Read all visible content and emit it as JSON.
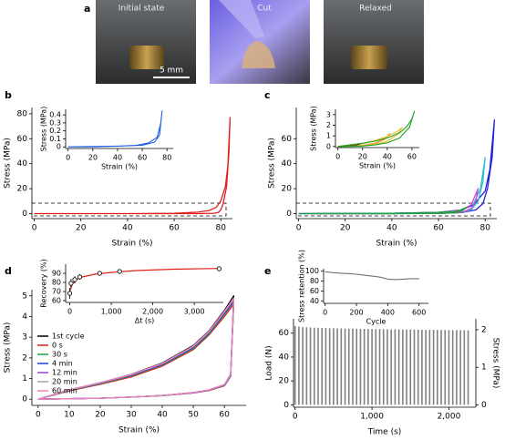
{
  "photos": {
    "panel": "a",
    "labels": [
      "Initial state",
      "Cut",
      "Relaxed"
    ],
    "scale_bar": "5 mm"
  },
  "chart_data": [
    {
      "panel": "b",
      "type": "line",
      "xlabel": "Strain (%)",
      "ylabel": "Stress (MPa)",
      "x": [
        0,
        20,
        40,
        60,
        70,
        75,
        78,
        80,
        82,
        83,
        84,
        83.5,
        82.5,
        81,
        80,
        79,
        77,
        70,
        60,
        40,
        20,
        0
      ],
      "values": [
        0,
        0,
        0,
        0.3,
        1.2,
        2.5,
        5,
        10,
        22,
        38,
        77,
        50,
        22,
        8,
        3,
        1,
        0.3,
        0,
        0,
        0,
        0,
        0
      ],
      "color": "#e0201c",
      "xlim": [
        -1,
        85
      ],
      "ylim": [
        -4,
        85
      ],
      "xticks": [
        0,
        20,
        40,
        60,
        80
      ],
      "yticks": [
        0,
        20,
        40,
        60,
        80
      ]
    },
    {
      "type": "line",
      "xlabel": "Strain (%)",
      "ylabel": "Stress (MPa)",
      "x": [
        0,
        20,
        40,
        60,
        70,
        74,
        76,
        75,
        72,
        65,
        55,
        40,
        20,
        0
      ],
      "values": [
        0,
        0.005,
        0.01,
        0.02,
        0.06,
        0.15,
        0.45,
        0.3,
        0.12,
        0.05,
        0.02,
        0.01,
        0,
        0
      ],
      "color": "#1f5fe0",
      "xlim": [
        -2,
        85
      ],
      "ylim": [
        -0.02,
        0.47
      ],
      "xticks": [
        0,
        20,
        40,
        60,
        80
      ],
      "yticks": [
        0,
        0.1,
        0.2,
        0.3,
        0.4
      ]
    },
    {
      "panel": "c",
      "type": "line",
      "xlabel": "Strain (%)",
      "ylabel": "Stress (MPa)",
      "series": [
        {
          "color": "#2020e0",
          "x": [
            0,
            40,
            60,
            70,
            75,
            80,
            82,
            84,
            83,
            81,
            79,
            76,
            70,
            60,
            40,
            0
          ],
          "values": [
            0,
            0.3,
            1,
            3,
            7,
            18,
            35,
            75,
            45,
            20,
            8,
            3,
            0.8,
            0.2,
            0,
            0
          ]
        },
        {
          "color": "#30c0d0",
          "x": [
            0,
            40,
            60,
            70,
            75,
            78,
            80,
            79,
            77,
            74,
            70,
            60,
            40,
            0
          ],
          "values": [
            0,
            0.3,
            1,
            3,
            8,
            20,
            45,
            25,
            10,
            3,
            0.8,
            0.2,
            0,
            0
          ]
        },
        {
          "color": "#d040d0",
          "x": [
            0,
            40,
            60,
            70,
            74,
            77,
            76,
            74,
            70,
            60,
            40,
            0
          ],
          "values": [
            0,
            0.3,
            1,
            3,
            7,
            20,
            10,
            4,
            1,
            0.3,
            0,
            0
          ]
        },
        {
          "color": "#20a040",
          "x": [
            0,
            40,
            60,
            68,
            72,
            70,
            66,
            60,
            40,
            0
          ],
          "values": [
            0,
            0.3,
            1,
            2,
            5,
            2,
            0.6,
            0.2,
            0,
            0
          ]
        }
      ],
      "xlim": [
        -1,
        85
      ],
      "ylim": [
        -4,
        85
      ],
      "xticks": [
        0,
        20,
        40,
        60,
        80
      ],
      "yticks": [
        0,
        20,
        40,
        60
      ]
    },
    {
      "type": "line",
      "xlabel": "Strain (%)",
      "ylabel": "Stress (MPa)",
      "series": [
        {
          "color": "#000000",
          "x": [
            0,
            10,
            20,
            15,
            10,
            0
          ],
          "values": [
            0,
            0.12,
            0.3,
            0.15,
            0.05,
            0
          ]
        },
        {
          "color": "#f08020",
          "x": [
            0,
            20,
            30,
            40,
            42,
            38,
            30,
            20,
            10,
            0
          ],
          "values": [
            0,
            0.3,
            0.55,
            0.95,
            1.2,
            0.7,
            0.3,
            0.12,
            0.03,
            0
          ]
        },
        {
          "color": "#e8c020",
          "x": [
            0,
            20,
            30,
            40,
            48,
            52,
            48,
            40,
            30,
            20,
            10,
            0
          ],
          "values": [
            0,
            0.3,
            0.55,
            0.95,
            1.4,
            1.8,
            1.1,
            0.5,
            0.25,
            0.1,
            0.02,
            0
          ]
        },
        {
          "color": "#20a020",
          "x": [
            0,
            20,
            30,
            40,
            50,
            56,
            60,
            62,
            58,
            50,
            40,
            30,
            20,
            10,
            0
          ],
          "values": [
            0,
            0.3,
            0.5,
            0.8,
            1.3,
            1.9,
            2.6,
            3.3,
            1.8,
            0.8,
            0.35,
            0.15,
            0.05,
            0.01,
            0
          ]
        }
      ],
      "xlim": [
        -2,
        66
      ],
      "ylim": [
        -0.1,
        3.5
      ],
      "xticks": [
        0,
        20,
        40,
        60
      ],
      "yticks": [
        0,
        1,
        2,
        3
      ]
    },
    {
      "panel": "d",
      "type": "line",
      "xlabel": "Strain (%)",
      "ylabel": "Stress (MPa)",
      "legend": "lower left",
      "x": [
        0,
        10,
        20,
        30,
        40,
        50,
        55,
        60,
        63,
        62,
        60,
        55,
        50,
        40,
        30,
        20,
        10,
        0
      ],
      "series": [
        {
          "name": "1st cycle",
          "color": "#000000",
          "values": [
            0,
            0.45,
            0.8,
            1.2,
            1.75,
            2.6,
            3.3,
            4.3,
            5.0,
            1.2,
            0.7,
            0.45,
            0.32,
            0.18,
            0.1,
            0.05,
            0.02,
            0
          ]
        },
        {
          "name": "0 s",
          "color": "#e0201c",
          "values": [
            0,
            0.4,
            0.72,
            1.08,
            1.6,
            2.4,
            3.1,
            4.0,
            4.6,
            1.1,
            0.65,
            0.42,
            0.3,
            0.17,
            0.1,
            0.05,
            0.02,
            0
          ]
        },
        {
          "name": "30 s",
          "color": "#20a040",
          "values": [
            0,
            0.42,
            0.75,
            1.12,
            1.65,
            2.45,
            3.15,
            4.1,
            4.7,
            1.1,
            0.66,
            0.43,
            0.31,
            0.17,
            0.1,
            0.05,
            0.02,
            0
          ]
        },
        {
          "name": "4 min",
          "color": "#2040e0",
          "values": [
            0,
            0.43,
            0.77,
            1.15,
            1.68,
            2.5,
            3.2,
            4.15,
            4.75,
            1.15,
            0.67,
            0.44,
            0.31,
            0.18,
            0.1,
            0.05,
            0.02,
            0
          ]
        },
        {
          "name": "12 min",
          "color": "#9040d0",
          "values": [
            0,
            0.44,
            0.78,
            1.17,
            1.7,
            2.53,
            3.23,
            4.2,
            4.8,
            1.15,
            0.68,
            0.44,
            0.31,
            0.18,
            0.1,
            0.05,
            0.02,
            0
          ]
        },
        {
          "name": "20 min",
          "color": "#a0a0a0",
          "values": [
            0,
            0.44,
            0.79,
            1.18,
            1.72,
            2.55,
            3.25,
            4.22,
            4.85,
            1.18,
            0.69,
            0.45,
            0.32,
            0.18,
            0.1,
            0.05,
            0.02,
            0
          ]
        },
        {
          "name": "60 min",
          "color": "#f080c0",
          "values": [
            0,
            0.45,
            0.8,
            1.19,
            1.73,
            2.57,
            3.27,
            4.25,
            4.9,
            1.18,
            0.7,
            0.45,
            0.32,
            0.18,
            0.1,
            0.05,
            0.02,
            0
          ]
        }
      ],
      "xlim": [
        -2,
        67
      ],
      "ylim": [
        -0.3,
        5.3
      ],
      "xticks": [
        0,
        10,
        20,
        30,
        40,
        50,
        60
      ],
      "yticks": [
        0,
        1,
        2,
        3,
        4,
        5
      ]
    },
    {
      "type": "scatter",
      "xlabel": "Δt (s)",
      "ylabel": "Recovery (%)",
      "x": [
        0,
        30,
        120,
        240,
        720,
        1200,
        3600
      ],
      "values": [
        68,
        79,
        83,
        86,
        90,
        92,
        95
      ],
      "errors": [
        6,
        5,
        4,
        3,
        2,
        2,
        2
      ],
      "color": "#000000",
      "fit": {
        "x": [
          0,
          60,
          150,
          300,
          600,
          1000,
          1600,
          2500,
          3600
        ],
        "values": [
          70,
          78,
          83,
          86,
          89,
          91,
          93,
          94.5,
          95.3
        ],
        "color": "#e0201c"
      },
      "xlim": [
        -100,
        3700
      ],
      "ylim": [
        58,
        100
      ],
      "xticks": [
        0,
        {
          "value": 1000,
          "label": "1,000"
        },
        {
          "value": 2000,
          "label": "2,000"
        },
        {
          "value": 3000,
          "label": "3,000"
        }
      ],
      "yticks": [
        60,
        70,
        80,
        90
      ]
    },
    {
      "panel": "e",
      "type": "bar",
      "xlabel": "Time (s)",
      "ylabel": "Load (N)",
      "y2label": "Stress (MPa)",
      "x": [
        0,
        50,
        100,
        150,
        200,
        250,
        300,
        350,
        400,
        450,
        500,
        550,
        600,
        650,
        700,
        750,
        800,
        850,
        900,
        950,
        1000,
        1050,
        1100,
        1150,
        1200,
        1250,
        1300,
        1350,
        1400,
        1450,
        1500,
        1550,
        1600,
        1650,
        1700,
        1750,
        1800,
        1850,
        1900,
        1950,
        2000,
        2050,
        2100,
        2150,
        2200,
        2250
      ],
      "values": [
        66,
        65.5,
        65,
        65,
        64.8,
        64.6,
        64.5,
        64.4,
        64.3,
        64.2,
        64.1,
        64,
        64,
        63.9,
        63.8,
        63.8,
        63.7,
        63.6,
        63.6,
        63.5,
        63.5,
        63.4,
        63.4,
        63.3,
        63.3,
        63.2,
        63.2,
        63.1,
        63.1,
        63,
        63,
        63,
        62.9,
        62.9,
        62.8,
        62.8,
        62.8,
        62.7,
        62.7,
        62.7,
        62.6,
        62.6,
        62.6,
        62.5,
        62.5,
        62.5
      ],
      "color": "#808080",
      "xlim": [
        -20,
        2350
      ],
      "ylim": [
        -2,
        72
      ],
      "y2lim": [
        -0.06,
        2.29
      ],
      "xticks": [
        0,
        {
          "value": 1000,
          "label": "1,000"
        },
        {
          "value": 2000,
          "label": "2,000"
        }
      ],
      "yticks": [
        0,
        20,
        40,
        60
      ],
      "y2ticks": [
        0,
        1,
        2
      ]
    },
    {
      "type": "line",
      "xlabel": "Cycle",
      "ylabel": "Stress retention (%)",
      "x": [
        0,
        50,
        100,
        150,
        200,
        250,
        300,
        350,
        400,
        450,
        500,
        550,
        600
      ],
      "values": [
        99,
        97,
        96,
        95,
        94,
        92,
        90,
        88,
        84,
        83,
        84,
        85,
        85
      ],
      "color": "#707070",
      "xlim": [
        -10,
        660
      ],
      "ylim": [
        35,
        105
      ],
      "xticks": [
        0,
        200,
        400,
        600
      ],
      "yticks": [
        40,
        60,
        80,
        100
      ]
    }
  ]
}
